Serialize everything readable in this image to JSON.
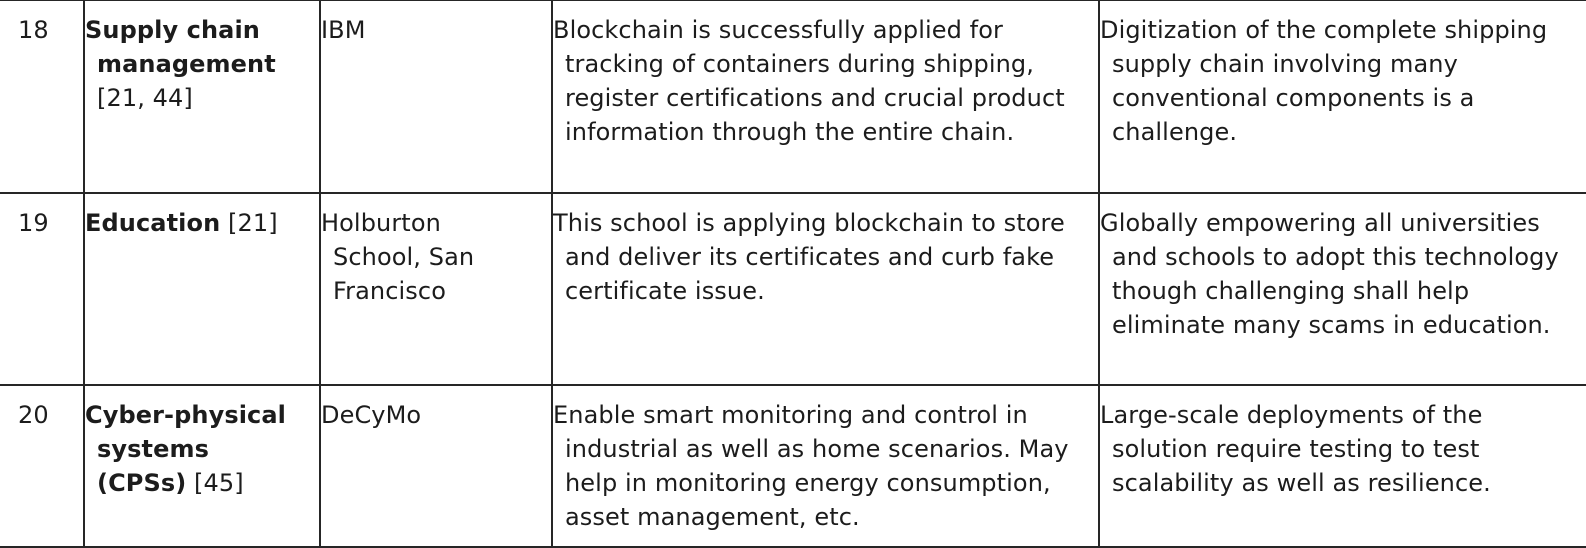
{
  "rows": [
    {
      "number": "18",
      "area": "Supply chain management",
      "area_ref": "[21, 44]",
      "organization": "IBM",
      "description": "Blockchain is successfully applied for tracking of containers during shipping, register certifications and crucial product information through the entire chain.",
      "challenge": "Digitization of the complete shipping supply chain involving many conventional components is a challenge."
    },
    {
      "number": "19",
      "area": "Education",
      "area_ref": "[21]",
      "organization": "Holburton School, San Francisco",
      "description": "This school is applying blockchain to store and deliver its certificates and curb fake certificate issue.",
      "challenge": "Globally empowering all universities and schools to adopt this technology though challenging shall help eliminate many scams in education."
    },
    {
      "number": "20",
      "area": "Cyber-physical systems (CPSs)",
      "area_ref": "[45]",
      "organization": "DeCyMo",
      "description": "Enable smart monitoring and control in industrial as well as home scenarios. May help in monitoring energy consumption, asset management, etc.",
      "challenge": "Large-scale deployments of the solution require testing to test scalability as well as resilience."
    }
  ]
}
